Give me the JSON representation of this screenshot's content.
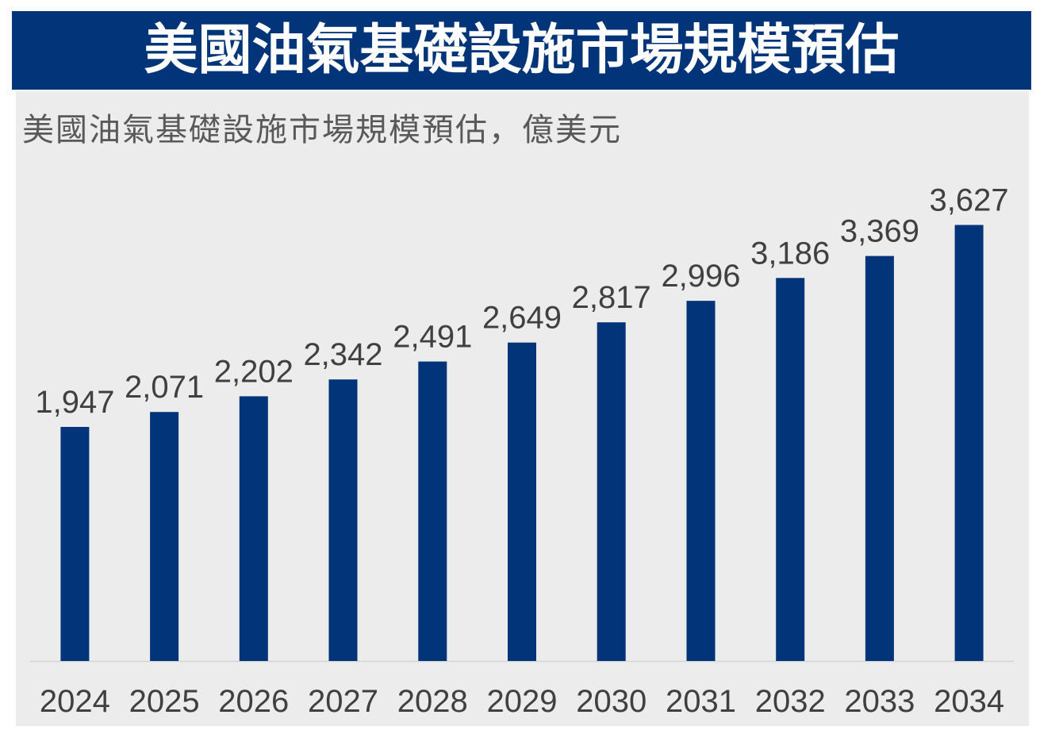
{
  "chart_data": {
    "type": "bar",
    "title": "美國油氣基礎設施市場規模預估",
    "subtitle": "美國油氣基礎設施市場規模預估，億美元",
    "categories": [
      "2024",
      "2025",
      "2026",
      "2027",
      "2028",
      "2029",
      "2030",
      "2031",
      "2032",
      "2033",
      "2034"
    ],
    "values": [
      1947,
      2071,
      2202,
      2342,
      2491,
      2649,
      2817,
      2996,
      3186,
      3369,
      3627
    ],
    "xlabel": "",
    "ylabel": "",
    "ylim": [
      0,
      4000
    ],
    "grid": false
  },
  "colors": {
    "banner": "#023479",
    "bar": "#023479",
    "panel": "#ececec",
    "label_text": "#404040",
    "subtitle_text": "#595959"
  }
}
